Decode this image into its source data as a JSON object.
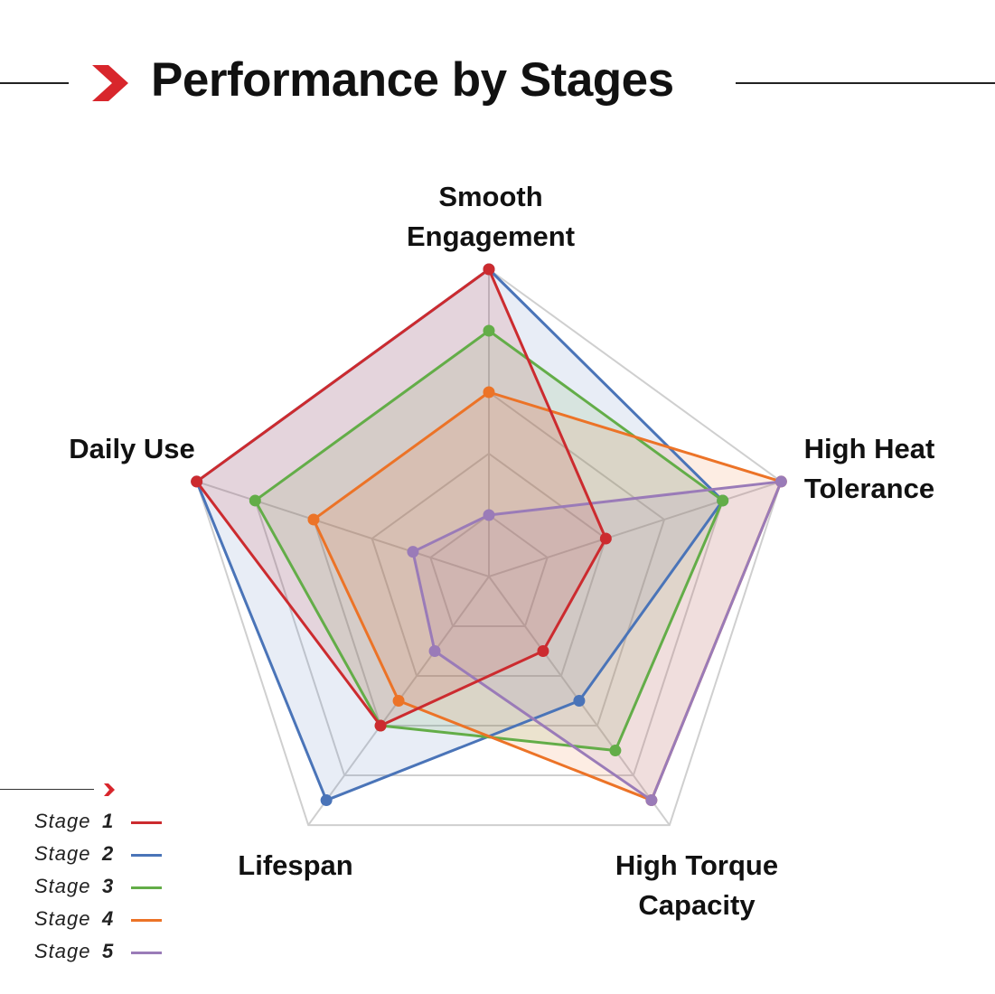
{
  "header": {
    "title": "Performance by Stages",
    "accent_color": "#d8262c",
    "icon": "chevron-right-icon"
  },
  "chart_data": {
    "type": "radar",
    "title": "Performance by Stages",
    "axes": [
      "Smooth Engagement",
      "High Heat Tolerance",
      "High Torque Capacity",
      "Lifespan",
      "Daily Use"
    ],
    "axis_label_lines": [
      [
        "Smooth",
        "Engagement"
      ],
      [
        "High Heat",
        "Tolerance"
      ],
      [
        "High Torque",
        "Capacity"
      ],
      [
        "Lifespan"
      ],
      [
        "Daily Use"
      ]
    ],
    "range": [
      0,
      5
    ],
    "grid_levels": 5,
    "legend_position": "bottom-left",
    "series": [
      {
        "name": "Stage",
        "number": "1",
        "color": "#cc2b2f",
        "values": [
          5.0,
          2.0,
          1.5,
          3.0,
          5.0
        ]
      },
      {
        "name": "Stage",
        "number": "2",
        "color": "#4a74b8",
        "values": [
          5.0,
          4.0,
          2.5,
          4.5,
          5.0
        ]
      },
      {
        "name": "Stage",
        "number": "3",
        "color": "#63ad48",
        "values": [
          4.0,
          4.0,
          3.5,
          3.0,
          4.0
        ]
      },
      {
        "name": "Stage",
        "number": "4",
        "color": "#ec7327",
        "values": [
          3.0,
          5.0,
          4.5,
          2.5,
          3.0
        ]
      },
      {
        "name": "Stage",
        "number": "5",
        "color": "#9a7bb8",
        "values": [
          1.0,
          5.0,
          4.5,
          1.5,
          1.3
        ]
      }
    ]
  }
}
